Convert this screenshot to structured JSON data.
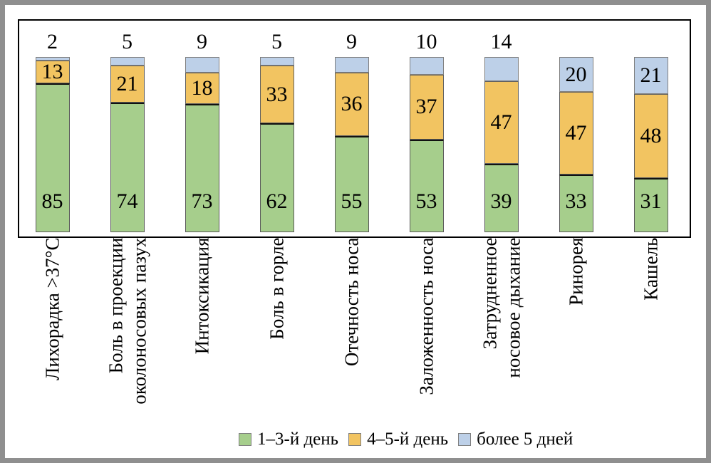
{
  "figure": {
    "frame_color": "#8f8f8f",
    "plot_border_color": "#000000",
    "background": "#ffffff"
  },
  "chart_data": {
    "type": "bar",
    "stacked": true,
    "title": "",
    "xlabel": "",
    "ylabel": "",
    "ylim": [
      0,
      100
    ],
    "grid": false,
    "legend_position": "bottom",
    "categories": [
      "Лихорадка >37°C",
      "Боль в проекции\nоколоносовых пазух",
      "Интоксикация",
      "Боль в горле",
      "Отечность носа",
      "Заложенность носа",
      "Затрудненное\nносовое дыхание",
      "Ринорея",
      "Кашель"
    ],
    "series": [
      {
        "name": "1–3-й день",
        "color": "#a6ce8c",
        "values": [
          85,
          74,
          73,
          62,
          55,
          53,
          39,
          33,
          31
        ]
      },
      {
        "name": "4–5-й день",
        "color": "#f2c461",
        "values": [
          13,
          21,
          18,
          33,
          36,
          37,
          47,
          47,
          48
        ]
      },
      {
        "name": "более 5 дней",
        "color": "#bdd0e8",
        "values": [
          2,
          5,
          9,
          5,
          9,
          10,
          14,
          20,
          21
        ]
      }
    ],
    "value_labels_shown": true,
    "series3_label_placement": [
      "above",
      "above",
      "above",
      "above",
      "above",
      "above",
      "above",
      "inside",
      "inside"
    ]
  }
}
